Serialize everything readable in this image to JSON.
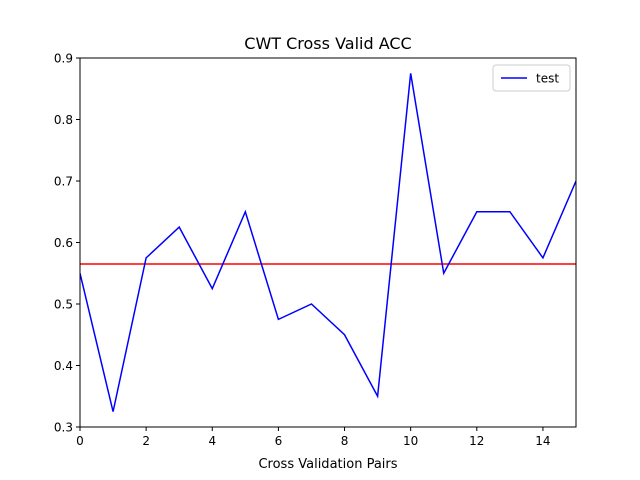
{
  "chart_data": {
    "type": "line",
    "title": "CWT Cross Valid ACC",
    "xlabel": "Cross Validation Pairs",
    "ylabel": "",
    "xlim": [
      0,
      15
    ],
    "ylim": [
      0.3,
      0.9
    ],
    "xticks": [
      0,
      2,
      4,
      6,
      8,
      10,
      12,
      14
    ],
    "xtick_labels": [
      "0",
      "2",
      "4",
      "6",
      "8",
      "10",
      "12",
      "14"
    ],
    "yticks": [
      0.3,
      0.4,
      0.5,
      0.6,
      0.7,
      0.8,
      0.9
    ],
    "ytick_labels": [
      "0.3",
      "0.4",
      "0.5",
      "0.6",
      "0.7",
      "0.8",
      "0.9"
    ],
    "grid": false,
    "legend": {
      "placement": "top-right",
      "entries": [
        "test"
      ]
    },
    "series": [
      {
        "name": "test",
        "color": "#0000ff",
        "x": [
          0,
          1,
          2,
          3,
          4,
          5,
          6,
          7,
          8,
          9,
          10,
          11,
          12,
          13,
          14,
          15
        ],
        "values": [
          0.55,
          0.325,
          0.575,
          0.625,
          0.525,
          0.65,
          0.475,
          0.5,
          0.45,
          0.35,
          0.875,
          0.55,
          0.65,
          0.65,
          0.575,
          0.7
        ]
      }
    ],
    "reference_line": {
      "orientation": "horizontal",
      "y": 0.565,
      "color": "#ff0000"
    }
  }
}
